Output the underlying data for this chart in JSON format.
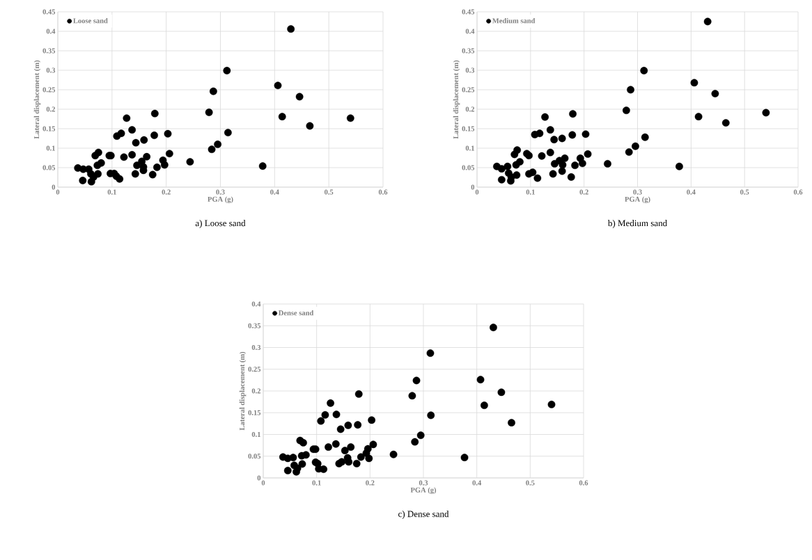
{
  "chart_data": [
    {
      "type": "scatter",
      "xlabel": "PGA (g)",
      "ylabel": "Lateral displacement (m)",
      "xlim": [
        0,
        0.6
      ],
      "xticks": [
        0,
        0.1,
        0.2,
        0.3,
        0.4,
        0.5,
        0.6
      ],
      "ylim": [
        0,
        0.45
      ],
      "yticks": [
        0,
        0.05,
        0.1,
        0.15,
        0.2,
        0.25,
        0.3,
        0.35,
        0.4,
        0.45
      ],
      "grid": true,
      "legend": "top left",
      "marker": "circle",
      "annotations": [
        "a) Loose sand"
      ],
      "x": [
        0.037,
        0.047,
        0.046,
        0.057,
        0.061,
        0.062,
        0.066,
        0.069,
        0.075,
        0.073,
        0.074,
        0.08,
        0.095,
        0.098,
        0.097,
        0.104,
        0.108,
        0.114,
        0.109,
        0.117,
        0.122,
        0.127,
        0.137,
        0.137,
        0.144,
        0.143,
        0.146,
        0.155,
        0.158,
        0.158,
        0.159,
        0.164,
        0.175,
        0.178,
        0.179,
        0.183,
        0.194,
        0.197,
        0.203,
        0.206,
        0.244,
        0.279,
        0.287,
        0.284,
        0.295,
        0.312,
        0.314,
        0.43,
        0.406,
        0.446,
        0.414,
        0.465,
        0.54,
        0.378
      ],
      "series": [
        {
          "name": "Loose sand",
          "color": "#000000",
          "values": [
            0.049,
            0.046,
            0.017,
            0.046,
            0.034,
            0.014,
            0.026,
            0.081,
            0.089,
            0.056,
            0.034,
            0.062,
            0.081,
            0.081,
            0.035,
            0.035,
            0.028,
            0.021,
            0.131,
            0.138,
            0.077,
            0.177,
            0.147,
            0.083,
            0.114,
            0.034,
            0.056,
            0.066,
            0.052,
            0.043,
            0.121,
            0.078,
            0.032,
            0.133,
            0.189,
            0.051,
            0.069,
            0.057,
            0.137,
            0.086,
            0.065,
            0.192,
            0.246,
            0.097,
            0.11,
            0.299,
            0.14,
            0.406,
            0.261,
            0.232,
            0.181,
            0.157,
            0.177,
            0.054
          ]
        }
      ]
    },
    {
      "type": "scatter",
      "xlabel": "PGA (g)",
      "ylabel": "Lateral displacement (m)",
      "xlim": [
        0,
        0.6
      ],
      "xticks": [
        0,
        0.1,
        0.2,
        0.3,
        0.4,
        0.5,
        0.6
      ],
      "ylim": [
        0,
        0.45
      ],
      "yticks": [
        0,
        0.05,
        0.1,
        0.15,
        0.2,
        0.25,
        0.3,
        0.35,
        0.4,
        0.45
      ],
      "grid": true,
      "legend": "top left",
      "marker": "circle",
      "annotations": [
        "b) Medium sand"
      ],
      "x": [
        0.037,
        0.046,
        0.046,
        0.057,
        0.059,
        0.063,
        0.064,
        0.07,
        0.075,
        0.073,
        0.074,
        0.08,
        0.093,
        0.097,
        0.097,
        0.104,
        0.113,
        0.108,
        0.117,
        0.121,
        0.127,
        0.137,
        0.137,
        0.144,
        0.142,
        0.145,
        0.154,
        0.16,
        0.159,
        0.159,
        0.164,
        0.176,
        0.178,
        0.179,
        0.183,
        0.193,
        0.197,
        0.203,
        0.207,
        0.244,
        0.279,
        0.287,
        0.284,
        0.296,
        0.312,
        0.314,
        0.431,
        0.406,
        0.445,
        0.414,
        0.465,
        0.54,
        0.378
      ],
      "series": [
        {
          "name": "Medium sand",
          "color": "#000000",
          "values": [
            0.053,
            0.047,
            0.019,
            0.053,
            0.036,
            0.016,
            0.026,
            0.084,
            0.095,
            0.057,
            0.031,
            0.065,
            0.086,
            0.081,
            0.034,
            0.038,
            0.023,
            0.135,
            0.138,
            0.08,
            0.18,
            0.147,
            0.089,
            0.122,
            0.034,
            0.06,
            0.068,
            0.057,
            0.041,
            0.125,
            0.074,
            0.026,
            0.134,
            0.188,
            0.056,
            0.074,
            0.061,
            0.136,
            0.085,
            0.06,
            0.197,
            0.25,
            0.09,
            0.105,
            0.299,
            0.128,
            0.425,
            0.268,
            0.24,
            0.181,
            0.165,
            0.191,
            0.053
          ]
        }
      ]
    },
    {
      "type": "scatter",
      "xlabel": "PGA (g)",
      "ylabel": "Lateral displacement (m)",
      "xlim": [
        0,
        0.6
      ],
      "xticks": [
        0,
        0.1,
        0.2,
        0.3,
        0.4,
        0.5,
        0.6
      ],
      "ylim": [
        0,
        0.4
      ],
      "yticks": [
        0,
        0.05,
        0.1,
        0.15,
        0.2,
        0.25,
        0.3,
        0.35,
        0.4
      ],
      "grid": true,
      "legend": "top left",
      "marker": "circle",
      "annotations": [
        "c) Dense sand"
      ],
      "x": [
        0.037,
        0.046,
        0.046,
        0.056,
        0.058,
        0.062,
        0.064,
        0.069,
        0.075,
        0.072,
        0.073,
        0.08,
        0.094,
        0.098,
        0.098,
        0.102,
        0.104,
        0.113,
        0.108,
        0.116,
        0.122,
        0.126,
        0.137,
        0.136,
        0.145,
        0.142,
        0.147,
        0.153,
        0.158,
        0.16,
        0.159,
        0.164,
        0.175,
        0.177,
        0.179,
        0.183,
        0.193,
        0.196,
        0.198,
        0.203,
        0.206,
        0.244,
        0.279,
        0.287,
        0.284,
        0.295,
        0.313,
        0.314,
        0.431,
        0.407,
        0.446,
        0.414,
        0.465,
        0.54,
        0.377
      ],
      "series": [
        {
          "name": "Dense sand",
          "color": "#000000",
          "values": [
            0.048,
            0.045,
            0.017,
            0.047,
            0.029,
            0.014,
            0.022,
            0.086,
            0.081,
            0.051,
            0.032,
            0.053,
            0.066,
            0.066,
            0.036,
            0.033,
            0.021,
            0.02,
            0.131,
            0.145,
            0.071,
            0.172,
            0.146,
            0.078,
            0.112,
            0.033,
            0.037,
            0.063,
            0.046,
            0.037,
            0.121,
            0.071,
            0.033,
            0.122,
            0.193,
            0.048,
            0.057,
            0.067,
            0.045,
            0.133,
            0.077,
            0.054,
            0.189,
            0.224,
            0.083,
            0.098,
            0.287,
            0.144,
            0.346,
            0.226,
            0.197,
            0.167,
            0.127,
            0.169,
            0.047
          ]
        }
      ]
    }
  ]
}
